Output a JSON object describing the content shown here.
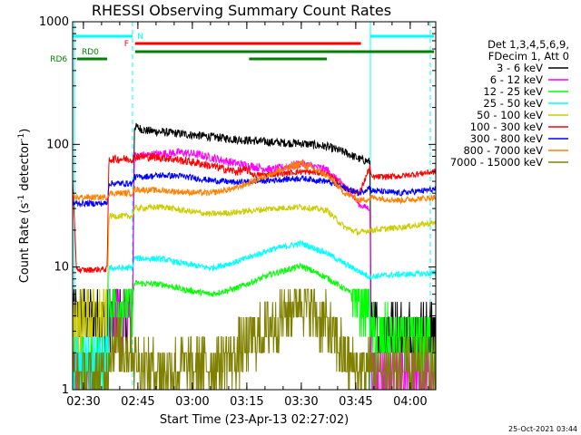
{
  "chart_data": {
    "type": "line",
    "title": "RHESSI Observing Summary Count Rates",
    "xlabel": "Start Time (23-Apr-13 02:27:02)",
    "ylabel": "Count Rate (s⁻¹ detector⁻¹)",
    "ylabel_main": "Count Rate (s",
    "ylabel_sup1": "-1",
    "ylabel_mid": " detector",
    "ylabel_sup2": "-1",
    "ylabel_end": ")",
    "x_unit": "minutes after 02:27:02",
    "xlim": [
      0,
      100
    ],
    "ylim": [
      1,
      1000
    ],
    "y_scale": "log",
    "x_ticks": [
      {
        "x": 2.97,
        "label": "02:30"
      },
      {
        "x": 17.97,
        "label": "02:45"
      },
      {
        "x": 32.97,
        "label": "03:00"
      },
      {
        "x": 47.97,
        "label": "03:15"
      },
      {
        "x": 62.97,
        "label": "03:30"
      },
      {
        "x": 77.97,
        "label": "03:45"
      },
      {
        "x": 92.97,
        "label": "04:00"
      }
    ],
    "y_ticks": [
      {
        "y": 1,
        "label": "1"
      },
      {
        "y": 10,
        "label": "10"
      },
      {
        "y": 100,
        "label": "100"
      },
      {
        "y": 1000,
        "label": "1000"
      }
    ],
    "legend_header": [
      "Det 1,3,4,5,6,9,",
      "FDecim 1, Att 0"
    ],
    "legend_position": "right",
    "night_edges": [
      17.0,
      82.0
    ],
    "shading_lines": [
      0.5,
      16.5,
      82.0,
      98.5
    ],
    "flags": [
      {
        "label": "N",
        "color": "#00ffff",
        "level": 0,
        "segments": [
          [
            0,
            16.5
          ],
          [
            81.9,
            99.5
          ]
        ],
        "label_x": 17.8
      },
      {
        "label": "F",
        "color": "#ff0000",
        "level": 1,
        "segments": [
          [
            17.2,
            79.4
          ]
        ],
        "label_x": 14.2
      },
      {
        "label": "RD0",
        "color": "#008000",
        "level": 2,
        "segments": [
          [
            17.2,
            99.5
          ]
        ],
        "label_x": 2.5
      },
      {
        "label": "RD6",
        "color": "#008000",
        "level": 3,
        "segments": [
          [
            1.2,
            9.5
          ],
          [
            48.6,
            70.0
          ]
        ],
        "label_x": -6.2
      }
    ],
    "series": [
      {
        "name": "3 - 6 keV",
        "color": "#000000",
        "x": [
          0,
          16.5,
          17,
          20,
          30,
          45,
          55,
          63,
          70,
          75,
          79,
          81.9,
          82.2,
          90,
          100
        ],
        "y": [
          3.9,
          3.9,
          140,
          130,
          122,
          110,
          104,
          102,
          96,
          86,
          76,
          72,
          3.0,
          3.0,
          3.0
        ]
      },
      {
        "name": "6 - 12 keV",
        "color": "#ff00ff",
        "x": [
          0,
          9.5,
          10,
          16.5,
          17,
          25,
          30,
          35,
          45,
          55,
          63,
          70,
          75,
          79,
          81.9,
          82.2,
          90,
          100
        ],
        "y": [
          1.3,
          1.3,
          3.9,
          3.9,
          80,
          84,
          86,
          82,
          70,
          62,
          70,
          62,
          46,
          32,
          30,
          1.3,
          1.3,
          1.3
        ]
      },
      {
        "name": "12 - 25 keV",
        "color": "#00ff00",
        "x": [
          0,
          9.5,
          10,
          16.5,
          17,
          25,
          30,
          38,
          45,
          55,
          63,
          70,
          75,
          79,
          81.9,
          82.2,
          90,
          100
        ],
        "y": [
          1.6,
          1.6,
          5.0,
          5.0,
          7.4,
          7.2,
          6.6,
          6.0,
          6.7,
          8.8,
          10.2,
          8.2,
          6.6,
          5.4,
          4.7,
          2.7,
          2.5,
          2.5
        ]
      },
      {
        "name": "25 - 50 keV",
        "color": "#00ffff",
        "x": [
          0,
          9.5,
          10,
          16.5,
          17,
          25,
          30,
          38,
          45,
          55,
          63,
          70,
          75,
          79,
          81.9,
          82.2,
          90,
          100
        ],
        "y": [
          1.6,
          1.6,
          9.8,
          9.8,
          11.8,
          11.6,
          10.7,
          9.8,
          11.0,
          14.0,
          15.6,
          13.0,
          10.6,
          9.2,
          8.3,
          8.4,
          8.7,
          8.9
        ]
      },
      {
        "name": "50 - 100 keV",
        "color": "#cccc00",
        "x": [
          0,
          9.5,
          10,
          16.5,
          17,
          25,
          30,
          38,
          45,
          55,
          63,
          70,
          75,
          79,
          81.9,
          82.2,
          90,
          100
        ],
        "y": [
          3.9,
          3.9,
          26,
          26,
          30,
          31,
          29,
          27,
          28,
          30,
          31,
          29,
          21,
          19,
          20,
          20,
          21,
          23
        ]
      },
      {
        "name": "100 - 300 keV",
        "color": "#ff0000",
        "x": [
          0,
          1,
          2,
          8,
          9.5,
          10,
          16.5,
          17,
          25,
          30,
          35,
          45,
          48,
          50,
          55,
          63,
          70,
          75,
          79,
          81.9,
          82.2,
          90,
          100
        ],
        "y": [
          55,
          10,
          9.4,
          9.6,
          9.6,
          76,
          76,
          80,
          78,
          74,
          70,
          60,
          62,
          56,
          57,
          60,
          58,
          44,
          40,
          66,
          54,
          55,
          60
        ]
      },
      {
        "name": "300 - 800 keV",
        "color": "#0000ff",
        "x": [
          0,
          9.5,
          10,
          16.5,
          17,
          25,
          30,
          38,
          45,
          55,
          63,
          70,
          75,
          79,
          81.9,
          82.2,
          90,
          100
        ],
        "y": [
          33,
          33,
          48,
          48,
          54,
          56,
          55,
          51,
          49,
          51,
          53,
          50,
          44,
          40,
          45,
          42,
          40,
          43
        ]
      },
      {
        "name": "800 - 7000 keV",
        "color": "#ff8000",
        "x": [
          0,
          9.5,
          10,
          16.5,
          17,
          25,
          30,
          38,
          45,
          55,
          63,
          70,
          75,
          79,
          81.9,
          82.2,
          90,
          100
        ],
        "y": [
          37,
          37,
          40,
          40,
          43,
          42,
          41,
          40,
          44,
          58,
          70,
          56,
          40,
          35,
          36,
          37,
          35,
          37
        ]
      },
      {
        "name": "7000 - 15000 keV",
        "color": "#808000",
        "x": [
          0,
          9.5,
          10,
          16.5,
          17,
          25,
          30,
          38,
          45,
          55,
          63,
          70,
          75,
          79,
          81.9,
          82.2,
          90,
          100
        ],
        "y": [
          1.3,
          1.3,
          2.3,
          2.3,
          1.7,
          1.4,
          1.5,
          1.6,
          1.9,
          3.3,
          5.6,
          3.3,
          1.8,
          1.4,
          1.4,
          1.4,
          1.4,
          1.4
        ]
      }
    ]
  },
  "timestamp": "25-Oct-2021 03:44"
}
